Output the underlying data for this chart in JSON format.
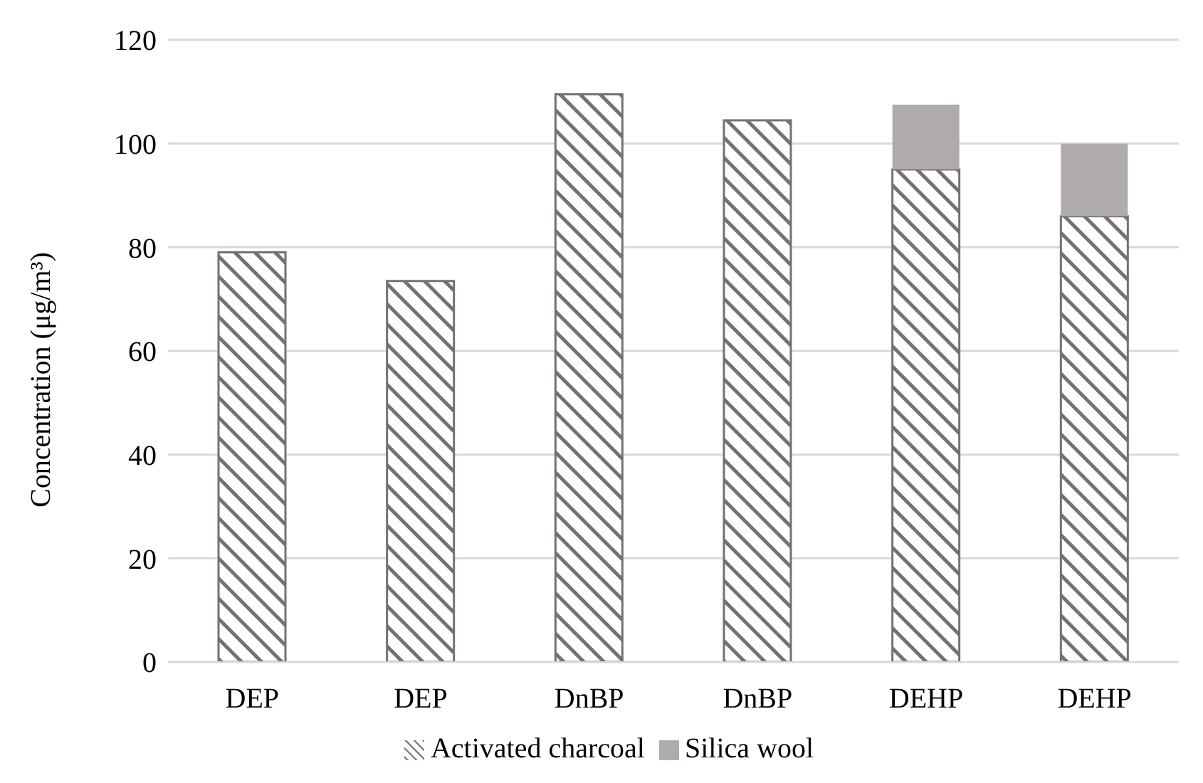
{
  "chart_data": {
    "type": "bar",
    "stacked": true,
    "ylabel": "Concentration (μg/m³)",
    "categories": [
      "DEP",
      "DEP",
      "DnBP",
      "DnBP",
      "DEHP",
      "DEHP"
    ],
    "series": [
      {
        "name": "Activated charcoal",
        "color": "#767171",
        "values": [
          79,
          73.5,
          109.5,
          104.5,
          95,
          86
        ]
      },
      {
        "name": "Silica wool",
        "color": "#afabab",
        "values": [
          null,
          null,
          null,
          null,
          12.5,
          14
        ]
      }
    ],
    "ylim": [
      0,
      120
    ],
    "yticks": [
      0,
      20,
      40,
      60,
      80,
      100,
      120
    ],
    "grid": "y",
    "legend": "bottom"
  }
}
